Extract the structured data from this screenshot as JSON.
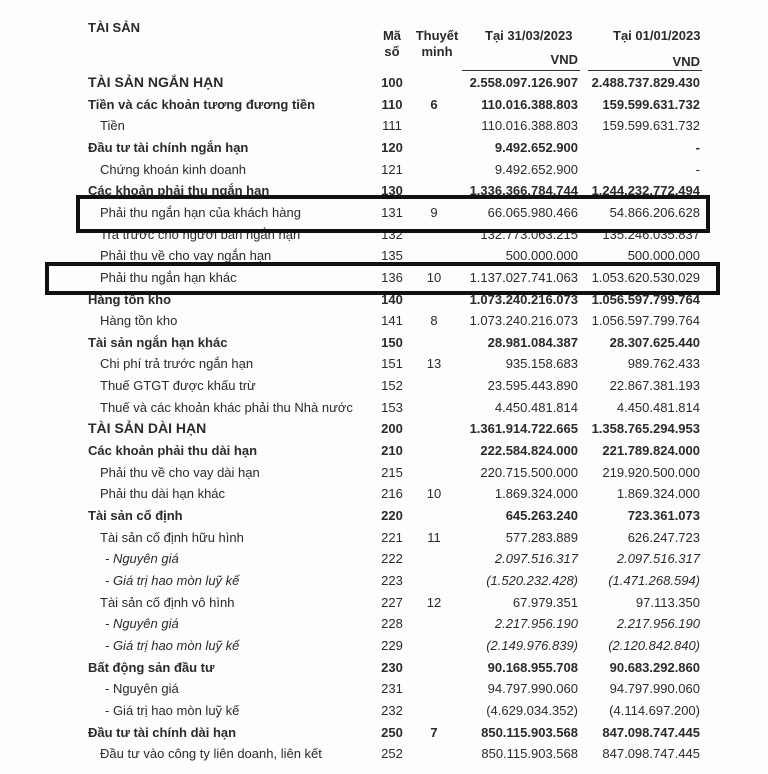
{
  "header": {
    "section": "TÀI SẢN",
    "code_col": "Mã số",
    "note_col": "Thuyết minh",
    "date1": "Tại 31/03/2023",
    "date2": "Tại 01/01/2023",
    "unit1": "VND",
    "unit2": "VND"
  },
  "rows": [
    {
      "label": "TÀI SẢN NGẮN HẠN",
      "code": "100",
      "note": "",
      "v1": "2.558.097.126.907",
      "v2": "2.488.737.829.430",
      "style": "b big"
    },
    {
      "label": "Tiền và các khoản tương đương tiền",
      "code": "110",
      "note": "6",
      "v1": "110.016.388.803",
      "v2": "159.599.631.732",
      "style": "b"
    },
    {
      "label": "Tiền",
      "code": "111",
      "note": "",
      "v1": "110.016.388.803",
      "v2": "159.599.631.732",
      "style": "ind1"
    },
    {
      "label": "Đầu tư tài chính ngắn hạn",
      "code": "120",
      "note": "",
      "v1": "9.492.652.900",
      "v2": "-",
      "style": "b"
    },
    {
      "label": "Chứng khoán kinh doanh",
      "code": "121",
      "note": "",
      "v1": "9.492.652.900",
      "v2": "-",
      "style": "ind1"
    },
    {
      "label": "Các khoản phải thu ngắn hạn",
      "code": "130",
      "note": "",
      "v1": "1.336.366.784.744",
      "v2": "1.244.232.772.494",
      "style": "b"
    },
    {
      "label": "Phải thu ngắn hạn của khách hàng",
      "code": "131",
      "note": "9",
      "v1": "66.065.980.466",
      "v2": "54.866.206.628",
      "style": "ind1"
    },
    {
      "label": "Trả trước cho người bán ngắn hạn",
      "code": "132",
      "note": "",
      "v1": "132.773.063.215",
      "v2": "135.246.035.837",
      "style": "ind1"
    },
    {
      "label": "Phải thu về cho vay ngắn hạn",
      "code": "135",
      "note": "",
      "v1": "500.000.000",
      "v2": "500.000.000",
      "style": "ind1"
    },
    {
      "label": "Phải thu ngắn hạn khác",
      "code": "136",
      "note": "10",
      "v1": "1.137.027.741.063",
      "v2": "1.053.620.530.029",
      "style": "ind1"
    },
    {
      "label": "Hàng tồn kho",
      "code": "140",
      "note": "",
      "v1": "1.073.240.216.073",
      "v2": "1.056.597.799.764",
      "style": "b"
    },
    {
      "label": "Hàng tồn kho",
      "code": "141",
      "note": "8",
      "v1": "1.073.240.216.073",
      "v2": "1.056.597.799.764",
      "style": "ind1"
    },
    {
      "label": "Tài sản ngắn hạn khác",
      "code": "150",
      "note": "",
      "v1": "28.981.084.387",
      "v2": "28.307.625.440",
      "style": "b"
    },
    {
      "label": "Chi phí trả trước ngắn hạn",
      "code": "151",
      "note": "13",
      "v1": "935.158.683",
      "v2": "989.762.433",
      "style": "ind1"
    },
    {
      "label": "Thuế GTGT được khấu trừ",
      "code": "152",
      "note": "",
      "v1": "23.595.443.890",
      "v2": "22.867.381.193",
      "style": "ind1"
    },
    {
      "label": "Thuế và các khoản khác phải thu Nhà nước",
      "code": "153",
      "note": "",
      "v1": "4.450.481.814",
      "v2": "4.450.481.814",
      "style": "ind1"
    },
    {
      "label": "TÀI SẢN DÀI HẠN",
      "code": "200",
      "note": "",
      "v1": "1.361.914.722.665",
      "v2": "1.358.765.294.953",
      "style": "b big"
    },
    {
      "label": "Các khoản phải thu dài hạn",
      "code": "210",
      "note": "",
      "v1": "222.584.824.000",
      "v2": "221.789.824.000",
      "style": "b"
    },
    {
      "label": "Phải thu về cho vay dài hạn",
      "code": "215",
      "note": "",
      "v1": "220.715.500.000",
      "v2": "219.920.500.000",
      "style": "ind1"
    },
    {
      "label": "Phải thu dài hạn khác",
      "code": "216",
      "note": "10",
      "v1": "1.869.324.000",
      "v2": "1.869.324.000",
      "style": "ind1"
    },
    {
      "label": "Tài sản cố định",
      "code": "220",
      "note": "",
      "v1": "645.263.240",
      "v2": "723.361.073",
      "style": "b"
    },
    {
      "label": "Tài sản cố định hữu hình",
      "code": "221",
      "note": "11",
      "v1": "577.283.889",
      "v2": "626.247.723",
      "style": "ind1"
    },
    {
      "label": "- Nguyên giá",
      "code": "222",
      "note": "",
      "v1": "2.097.516.317",
      "v2": "2.097.516.317",
      "style": "i ind2"
    },
    {
      "label": "- Giá trị hao mòn luỹ kế",
      "code": "223",
      "note": "",
      "v1": "(1.520.232.428)",
      "v2": "(1.471.268.594)",
      "style": "i ind2"
    },
    {
      "label": "Tài sản cố định vô hình",
      "code": "227",
      "note": "12",
      "v1": "67.979.351",
      "v2": "97.113.350",
      "style": "ind1"
    },
    {
      "label": "- Nguyên giá",
      "code": "228",
      "note": "",
      "v1": "2.217.956.190",
      "v2": "2.217.956.190",
      "style": "i ind2"
    },
    {
      "label": "- Giá trị hao mòn luỹ kế",
      "code": "229",
      "note": "",
      "v1": "(2.149.976.839)",
      "v2": "(2.120.842.840)",
      "style": "i ind2"
    },
    {
      "label": "Bất động sản đầu tư",
      "code": "230",
      "note": "",
      "v1": "90.168.955.708",
      "v2": "90.683.292.860",
      "style": "b"
    },
    {
      "label": "- Nguyên giá",
      "code": "231",
      "note": "",
      "v1": "94.797.990.060",
      "v2": "94.797.990.060",
      "style": "ind2"
    },
    {
      "label": "- Giá trị hao mòn luỹ kế",
      "code": "232",
      "note": "",
      "v1": "(4.629.034.352)",
      "v2": "(4.114.697.200)",
      "style": "ind2"
    },
    {
      "label": "Đầu tư tài chính dài hạn",
      "code": "250",
      "note": "7",
      "v1": "850.115.903.568",
      "v2": "847.098.747.445",
      "style": "b"
    },
    {
      "label": "Đầu tư vào công ty liên doanh, liên kết",
      "code": "252",
      "note": "",
      "v1": "850.115.903.568",
      "v2": "847.098.747.445",
      "style": "ind1"
    }
  ]
}
